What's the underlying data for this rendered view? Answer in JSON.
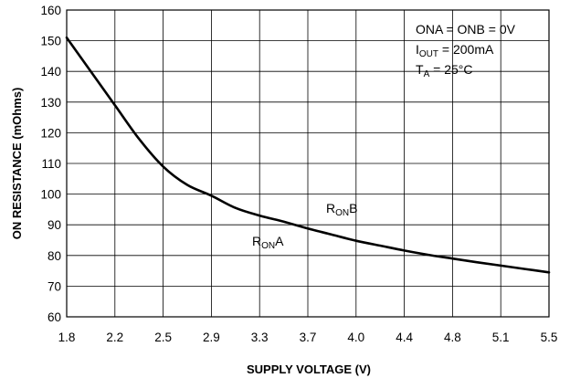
{
  "chart_data": {
    "type": "line",
    "xlabel": "SUPPLY VOLTAGE (V)",
    "ylabel": "ON RESISTANCE (mOhms)",
    "x_tick_labels": [
      "1.8",
      "2.2",
      "2.5",
      "2.9",
      "3.3",
      "3.7",
      "4.0",
      "4.4",
      "4.8",
      "5.1",
      "5.5"
    ],
    "y_ticks": [
      60,
      70,
      80,
      90,
      100,
      110,
      120,
      130,
      140,
      150,
      160
    ],
    "ylim": [
      60,
      160
    ],
    "grid": true,
    "series": [
      {
        "x_tick_index": [
          0,
          0.5,
          1,
          1.5,
          2,
          2.5,
          3,
          3.5,
          4,
          4.5,
          5,
          5.5,
          6,
          6.5,
          7,
          7.5,
          8,
          8.5,
          9,
          9.5,
          10
        ],
        "values": [
          151,
          140,
          129,
          118,
          109,
          103,
          99.5,
          95.5,
          93,
          91,
          88.8,
          86.8,
          84.8,
          83.2,
          81.6,
          80.2,
          79,
          77.8,
          76.7,
          75.6,
          74.5
        ]
      }
    ],
    "annotations": {
      "conditions": [
        {
          "main": "ONA = ONB = 0V",
          "sub": "",
          "suffix": ""
        },
        {
          "main": "I",
          "sub": "OUT",
          "suffix": " = 200mA"
        },
        {
          "main": "T",
          "sub": "A",
          "suffix": " = 25°C"
        }
      ],
      "label_a": {
        "main": "R",
        "sub": "ON",
        "suffix": "A"
      },
      "label_b": {
        "main": "R",
        "sub": "ON",
        "suffix": "B"
      }
    }
  }
}
